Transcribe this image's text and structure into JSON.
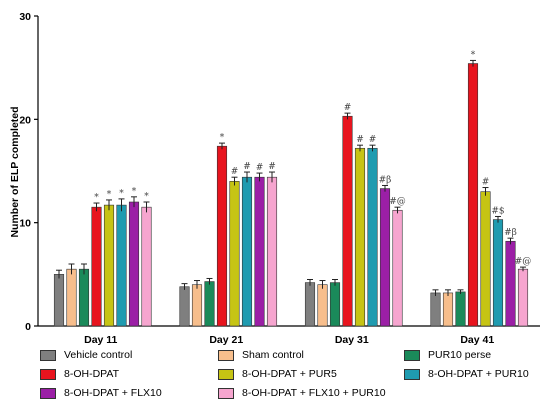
{
  "chart_data": {
    "type": "bar",
    "ylabel": "Number of ELP completed",
    "ylim": [
      0,
      30
    ],
    "yticks": [
      0,
      10,
      20,
      30
    ],
    "categories": [
      "Day 11",
      "Day 21",
      "Day 31",
      "Day 41"
    ],
    "error_bars": true,
    "legend_position": "bottom",
    "series": [
      {
        "name": "Vehicle control",
        "color": "#7f7f7f",
        "values": [
          5.0,
          3.8,
          4.2,
          3.2
        ],
        "errors": [
          0.4,
          0.3,
          0.3,
          0.3
        ],
        "annotations": [
          "",
          "",
          "",
          ""
        ]
      },
      {
        "name": "Sham control",
        "color": "#f7be8c",
        "values": [
          5.5,
          4.0,
          4.0,
          3.2
        ],
        "errors": [
          0.5,
          0.4,
          0.4,
          0.3
        ],
        "annotations": [
          "",
          "",
          "",
          ""
        ]
      },
      {
        "name": "PUR10 perse",
        "color": "#1a8a5a",
        "values": [
          5.5,
          4.3,
          4.2,
          3.3
        ],
        "errors": [
          0.5,
          0.3,
          0.3,
          0.2
        ],
        "annotations": [
          "",
          "",
          "",
          ""
        ]
      },
      {
        "name": "8-OH-DPAT",
        "color": "#e8141e",
        "values": [
          11.5,
          17.4,
          20.3,
          25.4
        ],
        "errors": [
          0.4,
          0.3,
          0.3,
          0.3
        ],
        "annotations": [
          "*",
          "*",
          "#",
          "*"
        ]
      },
      {
        "name": "8-OH-DPAT + PUR5",
        "color": "#c6c414",
        "values": [
          11.7,
          14.0,
          17.2,
          13.0
        ],
        "errors": [
          0.5,
          0.4,
          0.3,
          0.4
        ],
        "annotations": [
          "*",
          "#",
          "#",
          "#"
        ]
      },
      {
        "name": "8-OH-DPAT + PUR10",
        "color": "#1f9bb0",
        "values": [
          11.7,
          14.4,
          17.2,
          10.3
        ],
        "errors": [
          0.6,
          0.5,
          0.3,
          0.3
        ],
        "annotations": [
          "*",
          "#",
          "#",
          "#$"
        ]
      },
      {
        "name": "8-OH-DPAT + FLX10",
        "color": "#9b1fa6",
        "values": [
          12.0,
          14.4,
          13.3,
          8.2
        ],
        "errors": [
          0.5,
          0.4,
          0.3,
          0.3
        ],
        "annotations": [
          "*",
          "#",
          "#β",
          "#β"
        ]
      },
      {
        "name": "8-OH-DPAT + FLX10 + PUR10",
        "color": "#f6a5cf",
        "values": [
          11.5,
          14.4,
          11.2,
          5.5
        ],
        "errors": [
          0.5,
          0.5,
          0.3,
          0.2
        ],
        "annotations": [
          "*",
          "#",
          "#@",
          "#@"
        ]
      }
    ]
  }
}
